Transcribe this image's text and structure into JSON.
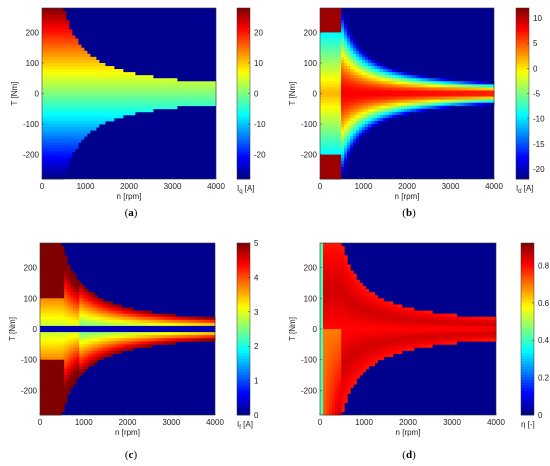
{
  "chart_data": [
    {
      "type": "heatmap",
      "id": "a",
      "caption_pre": "(",
      "caption_letter": "a",
      "caption_post": ")",
      "xlabel": "n [rpm]",
      "ylabel": "T [Nm]",
      "xlim": [
        0,
        4000
      ],
      "ylim": [
        -280,
        280
      ],
      "xticks": [
        "0",
        "1000",
        "2000",
        "3000",
        "4000"
      ],
      "yticks": [
        "200",
        "100",
        "0",
        "-100",
        "-200"
      ],
      "colorbar": {
        "label": "I",
        "label_sub": "q",
        "label_unit": " [A]",
        "range": [
          -28,
          28
        ],
        "ticks": [
          "20",
          "10",
          "0",
          "-10",
          "-20"
        ]
      },
      "model": "iq",
      "grid": false
    },
    {
      "type": "heatmap",
      "id": "b",
      "caption_pre": "(",
      "caption_letter": "b",
      "caption_post": ")",
      "xlabel": "n [rpm]",
      "ylabel": "T [Nm]",
      "xlim": [
        0,
        4000
      ],
      "ylim": [
        -280,
        280
      ],
      "xticks": [
        "0",
        "1000",
        "2000",
        "3000",
        "4000"
      ],
      "yticks": [
        "200",
        "100",
        "0",
        "-100",
        "-200"
      ],
      "colorbar": {
        "label": "I",
        "label_sub": "d",
        "label_unit": " [A]",
        "range": [
          -22,
          12
        ],
        "ticks": [
          "10",
          "5",
          "0",
          "-5",
          "-10",
          "-15",
          "-20"
        ]
      },
      "model": "id",
      "grid": false
    },
    {
      "type": "heatmap",
      "id": "c",
      "caption_pre": "(",
      "caption_letter": "c",
      "caption_post": ")",
      "xlabel": "n [rpm]",
      "ylabel": "T [Nm]",
      "xlim": [
        0,
        4000
      ],
      "ylim": [
        -280,
        280
      ],
      "xticks": [
        "0",
        "1000",
        "2000",
        "3000",
        "4000"
      ],
      "yticks": [
        "200",
        "100",
        "0",
        "-100",
        "-200"
      ],
      "colorbar": {
        "label": "I",
        "label_sub": "f",
        "label_unit": " [A]",
        "range": [
          0,
          5
        ],
        "ticks": [
          "5",
          "4",
          "3",
          "2",
          "1",
          "0"
        ]
      },
      "model": "if",
      "grid": false
    },
    {
      "type": "heatmap",
      "id": "d",
      "caption_pre": "(",
      "caption_letter": "d",
      "caption_post": ")",
      "xlabel": "n [rpm]",
      "ylabel": "T [Nm]",
      "xlim": [
        0,
        4000
      ],
      "ylim": [
        -280,
        280
      ],
      "xticks": [
        "0",
        "1000",
        "2000",
        "3000",
        "4000"
      ],
      "yticks": [
        "200",
        "100",
        "0",
        "-100",
        "-200"
      ],
      "colorbar": {
        "label": "η [-]",
        "label_sub": "",
        "label_unit": "",
        "range": [
          0,
          0.92
        ],
        "ticks": [
          "0.8",
          "0.6",
          "0.4",
          "0.2",
          "0"
        ]
      },
      "model": "eta",
      "grid": false
    }
  ]
}
